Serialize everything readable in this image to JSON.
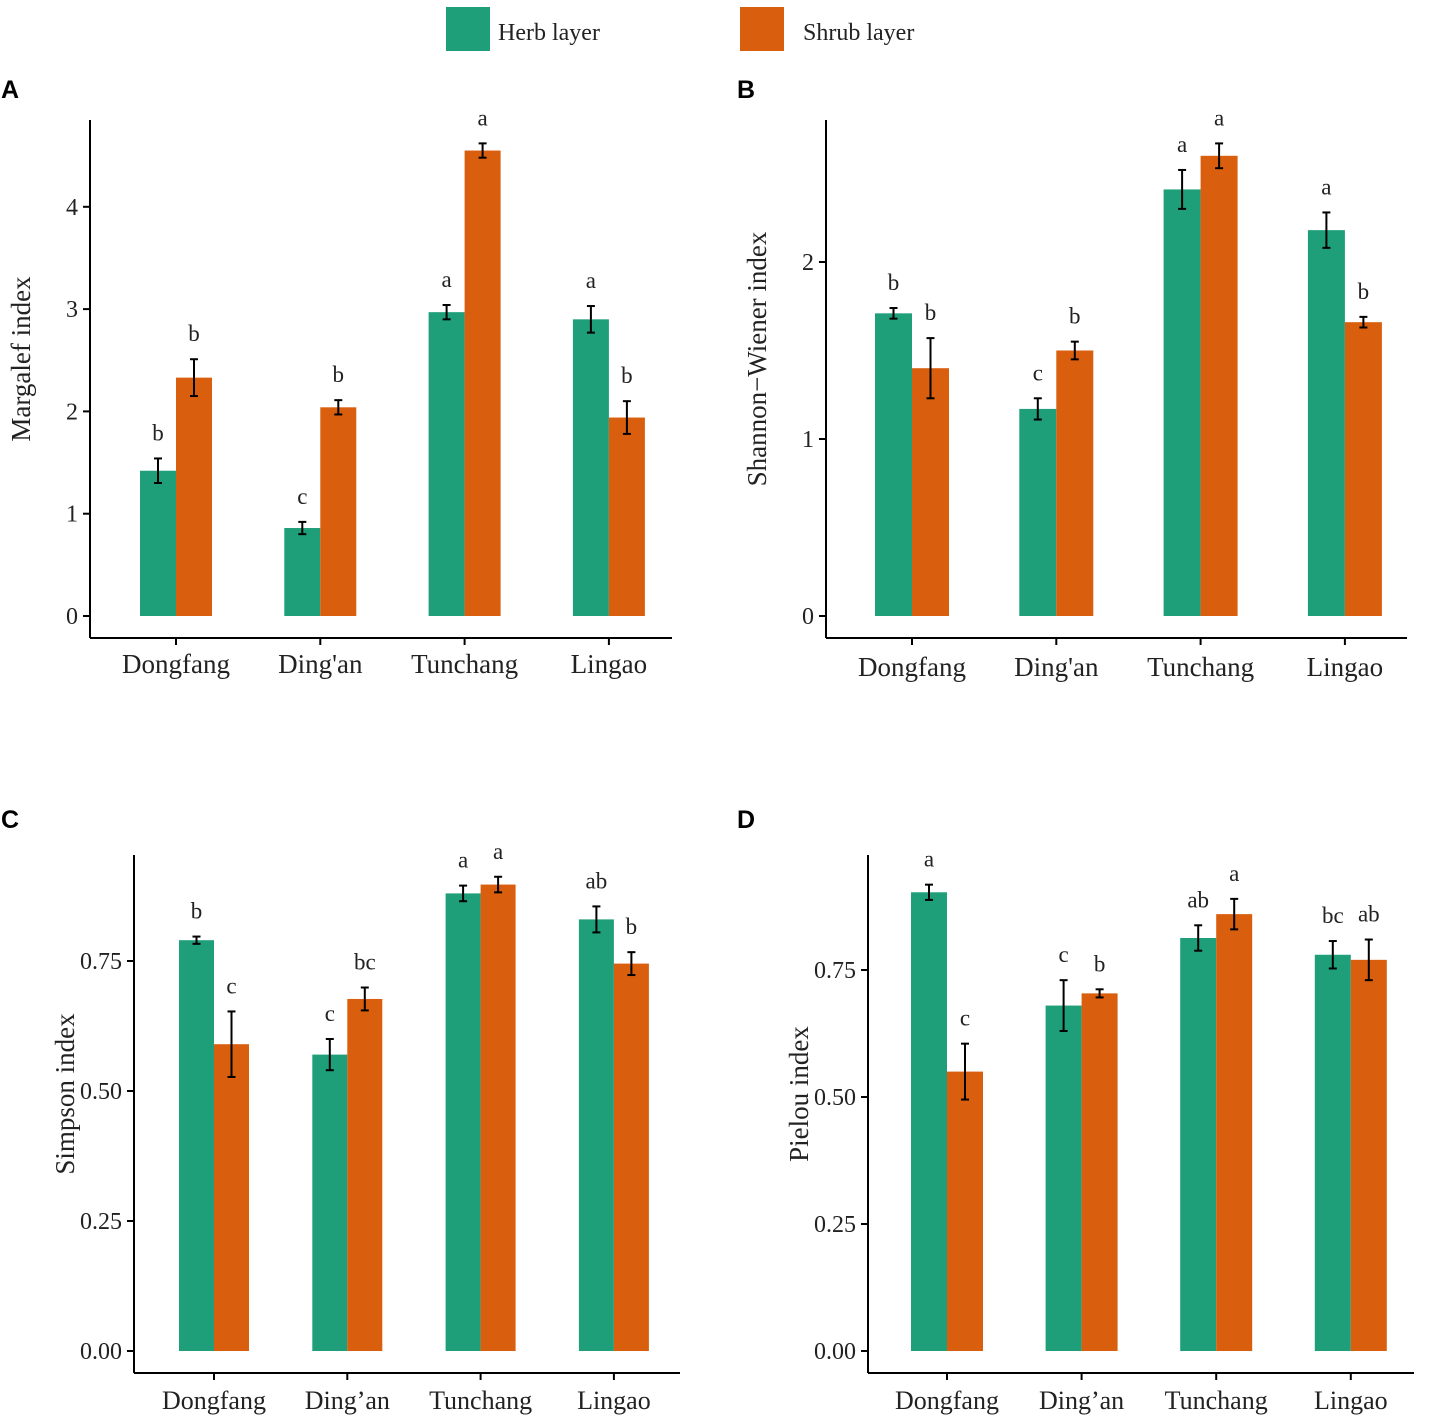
{
  "colors": {
    "herb": "#1f9e7a",
    "shrub": "#d95f0e",
    "axis": "#000000",
    "text": "#222222"
  },
  "legend": [
    {
      "label": "Herb layer",
      "color": "#1f9e7a"
    },
    {
      "label": "Shrub layer",
      "color": "#d95f0e"
    }
  ],
  "chart_data": [
    {
      "panel": "A",
      "type": "bar",
      "title": "",
      "xlabel": "",
      "ylabel": "Margalef index",
      "ylim": [
        0,
        4.8
      ],
      "yticks": [
        "0",
        "1",
        "2",
        "3",
        "4"
      ],
      "categories": [
        "Dongfang",
        "Ding'an",
        "Tunchang",
        "Lingao"
      ],
      "series": [
        {
          "name": "Herb layer",
          "values": [
            1.42,
            0.86,
            2.97,
            2.9
          ],
          "errors": [
            0.12,
            0.06,
            0.07,
            0.13
          ],
          "letters": [
            "b",
            "c",
            "a",
            "a"
          ]
        },
        {
          "name": "Shrub layer",
          "values": [
            2.33,
            2.04,
            4.55,
            1.94
          ],
          "errors": [
            0.18,
            0.07,
            0.07,
            0.16
          ],
          "letters": [
            "b",
            "b",
            "a",
            "b"
          ]
        }
      ]
    },
    {
      "panel": "B",
      "type": "bar",
      "title": "",
      "xlabel": "",
      "ylabel": "Shannon−Wiener  index",
      "ylim": [
        0,
        2.8
      ],
      "yticks": [
        "0",
        "1",
        "2"
      ],
      "categories": [
        "Dongfang",
        "Ding'an",
        "Tunchang",
        "Lingao"
      ],
      "series": [
        {
          "name": "Herb layer",
          "values": [
            1.71,
            1.17,
            2.41,
            2.18
          ],
          "errors": [
            0.03,
            0.06,
            0.11,
            0.1
          ],
          "letters": [
            "b",
            "c",
            "a",
            "a"
          ]
        },
        {
          "name": "Shrub layer",
          "values": [
            1.4,
            1.5,
            2.6,
            1.66
          ],
          "errors": [
            0.17,
            0.05,
            0.07,
            0.03
          ],
          "letters": [
            "b",
            "b",
            "a",
            "b"
          ]
        }
      ]
    },
    {
      "panel": "C",
      "type": "bar",
      "title": "",
      "xlabel": "",
      "ylabel": "Simpson index",
      "ylim": [
        0,
        0.95
      ],
      "yticks": [
        "0.00",
        "0.25",
        "0.50",
        "0.75"
      ],
      "categories": [
        "Dongfang",
        "Ding’an",
        "Tunchang",
        "Lingao"
      ],
      "series": [
        {
          "name": "Herb layer",
          "values": [
            0.79,
            0.57,
            0.88,
            0.83
          ],
          "errors": [
            0.007,
            0.03,
            0.015,
            0.025
          ],
          "letters": [
            "b",
            "c",
            "a",
            "ab"
          ]
        },
        {
          "name": "Shrub layer",
          "values": [
            0.59,
            0.677,
            0.897,
            0.745
          ],
          "errors": [
            0.063,
            0.022,
            0.015,
            0.022
          ],
          "letters": [
            "c",
            "bc",
            "a",
            "b"
          ]
        }
      ]
    },
    {
      "panel": "D",
      "type": "bar",
      "title": "",
      "xlabel": "",
      "ylabel": "Pielou  index",
      "ylim": [
        0,
        0.97
      ],
      "yticks": [
        "0.00",
        "0.25",
        "0.50",
        "0.75"
      ],
      "categories": [
        "Dongfang",
        "Ding’an",
        "Tunchang",
        "Lingao"
      ],
      "series": [
        {
          "name": "Herb layer",
          "values": [
            0.903,
            0.68,
            0.813,
            0.78
          ],
          "errors": [
            0.015,
            0.05,
            0.025,
            0.027
          ],
          "letters": [
            "a",
            "c",
            "ab",
            "bc"
          ]
        },
        {
          "name": "Shrub layer",
          "values": [
            0.55,
            0.704,
            0.86,
            0.77
          ],
          "errors": [
            0.055,
            0.008,
            0.03,
            0.04
          ],
          "letters": [
            "c",
            "b",
            "a",
            "ab"
          ]
        }
      ]
    }
  ]
}
